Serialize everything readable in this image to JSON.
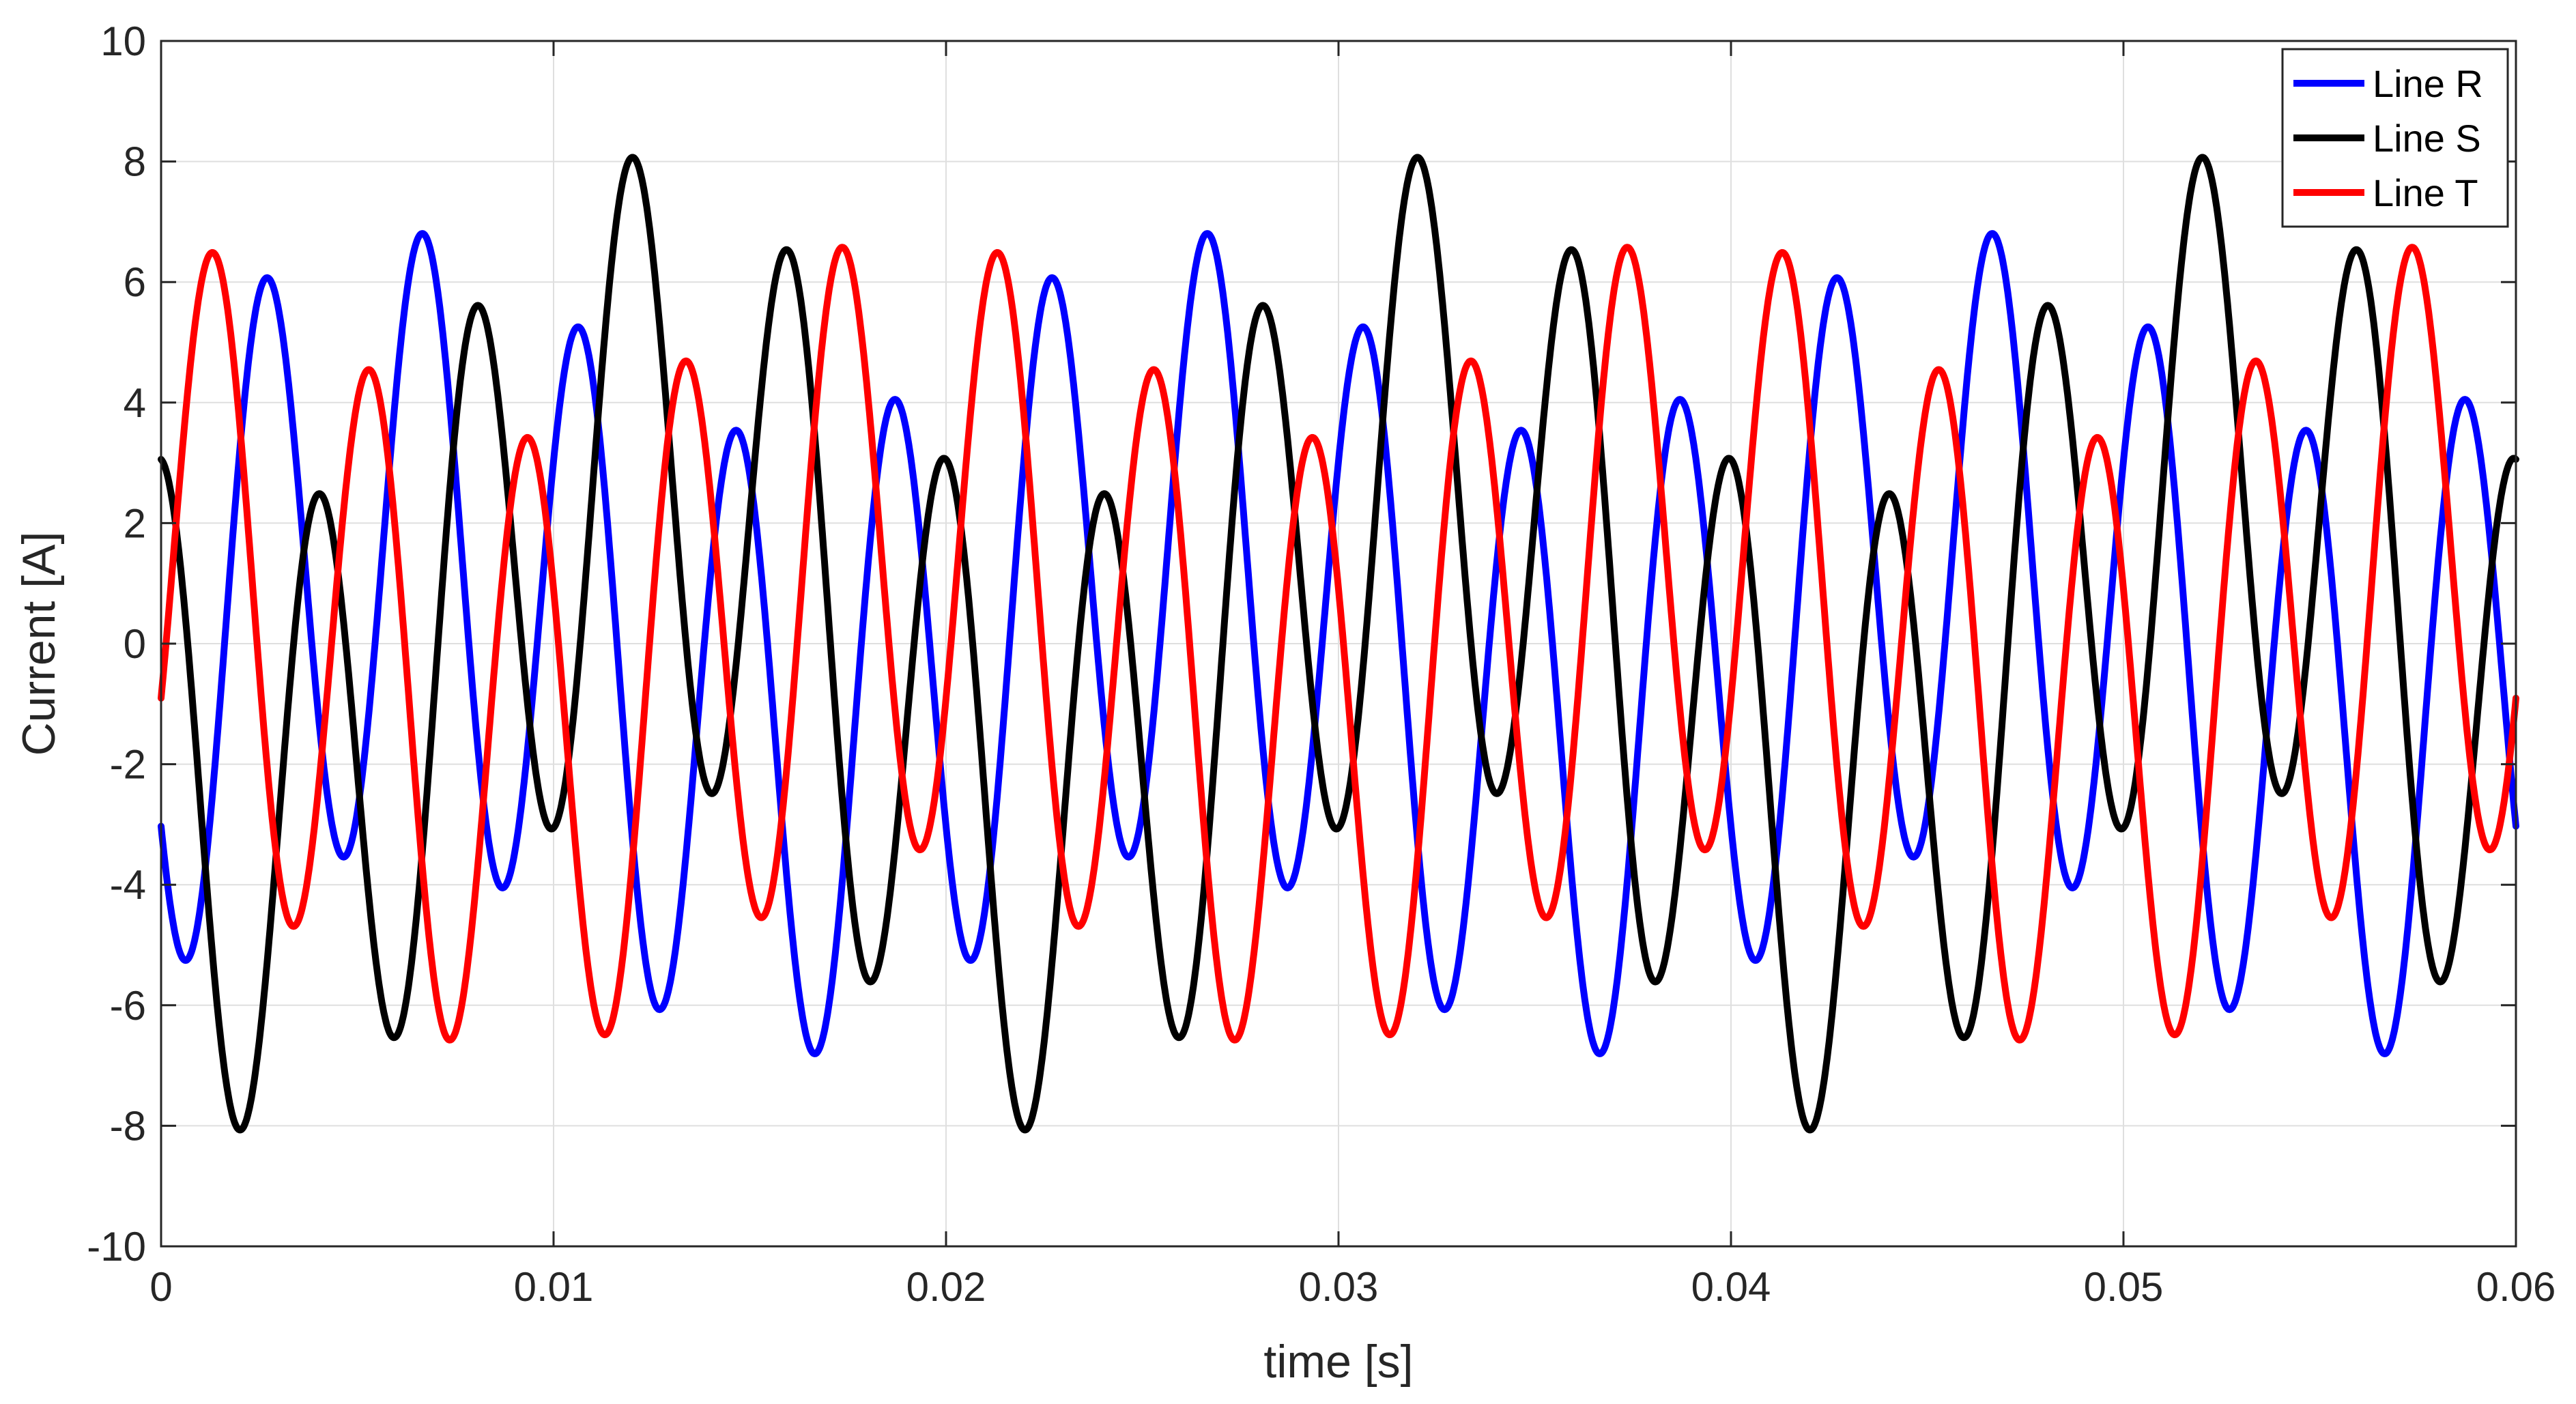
{
  "chart_data": {
    "type": "line",
    "title": "",
    "xlabel": "time [s]",
    "ylabel": "Current [A]",
    "xlim": [
      0,
      0.06
    ],
    "ylim": [
      -10,
      10
    ],
    "xticks": [
      0,
      0.01,
      0.02,
      0.03,
      0.04,
      0.05,
      0.06
    ],
    "xtick_labels": [
      "0",
      "0.01",
      "0.02",
      "0.03",
      "0.04",
      "0.05",
      "0.06"
    ],
    "yticks": [
      -10,
      -8,
      -6,
      -4,
      -2,
      0,
      2,
      4,
      6,
      8,
      10
    ],
    "ytick_labels": [
      "-10",
      "-8",
      "-6",
      "-4",
      "-2",
      "0",
      "2",
      "4",
      "6",
      "8",
      "10"
    ],
    "grid": true,
    "legend_position": "top-right",
    "series": [
      {
        "name": "Line R",
        "color": "#0000ff",
        "fundamental_hz": 250,
        "harmonics": [
          {
            "hz": 250,
            "amplitude": 5.14,
            "phase_deg": 210
          },
          {
            "hz": 50,
            "amplitude": 1.72,
            "phase_deg": -15.5
          }
        ]
      },
      {
        "name": "Line S",
        "color": "#000000",
        "fundamental_hz": 250,
        "harmonics": [
          {
            "hz": 250,
            "amplitude": 5.14,
            "phase_deg": 90
          },
          {
            "hz": 50,
            "amplitude": 2.97,
            "phase_deg": -135.5
          }
        ]
      },
      {
        "name": "Line T",
        "color": "#ff0000",
        "fundamental_hz": 250,
        "harmonics": [
          {
            "hz": 250,
            "amplitude": 5.14,
            "phase_deg": -30
          },
          {
            "hz": 50,
            "amplitude": 1.72,
            "phase_deg": 104.5
          }
        ]
      }
    ]
  }
}
